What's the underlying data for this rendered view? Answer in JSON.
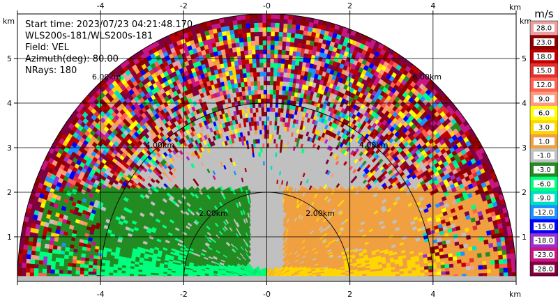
{
  "chart_data": {
    "type": "heatmap",
    "subtype": "radar-rhi-sector",
    "info_lines": [
      "Start time: 2023/07/23 04:21:48.170",
      "WLS200s-181/WLS200s-181",
      "Field: VEL",
      "Azimuth(deg): 80.00",
      "NRays: 180"
    ],
    "axis_unit": "km",
    "xlim": [
      -6.0,
      6.0
    ],
    "ylim": [
      0.0,
      6.0
    ],
    "x_ticks": [
      -4,
      -2,
      0,
      2,
      4
    ],
    "x_tick_labels": [
      "-4",
      "-2",
      "-0",
      "2",
      "4"
    ],
    "y_ticks": [
      1,
      2,
      3,
      4,
      5
    ],
    "y_tick_labels": [
      "1",
      "2",
      "3",
      "4",
      "5"
    ],
    "grid": true,
    "max_range_km": 6.0,
    "range_rings_km": [
      2.0,
      4.0,
      6.0
    ],
    "range_ring_labels": [
      "2.00km",
      "4.00km",
      "6.00km"
    ],
    "colorbar": {
      "unit": "m/s",
      "labels": [
        "28.0",
        "23.0",
        "18.0",
        "15.0",
        "12.0",
        "9.0",
        "6.0",
        "3.0",
        "1.0",
        "-1.0",
        "-3.0",
        "-6.0",
        "-9.0",
        "-12.0",
        "-15.0",
        "-18.0",
        "-23.0",
        "-28.0"
      ],
      "colors": [
        "#e8a0a0",
        "#8b0000",
        "#c00000",
        "#e03030",
        "#ff6050",
        "#ff9a7a",
        "#ffff00",
        "#ffd700",
        "#f0a040",
        "#c0c0c0",
        "#228b22",
        "#00ff7f",
        "#00e0c0",
        "#1e90ff",
        "#0000ff",
        "#9932cc",
        "#c71585",
        "#800040"
      ]
    }
  }
}
